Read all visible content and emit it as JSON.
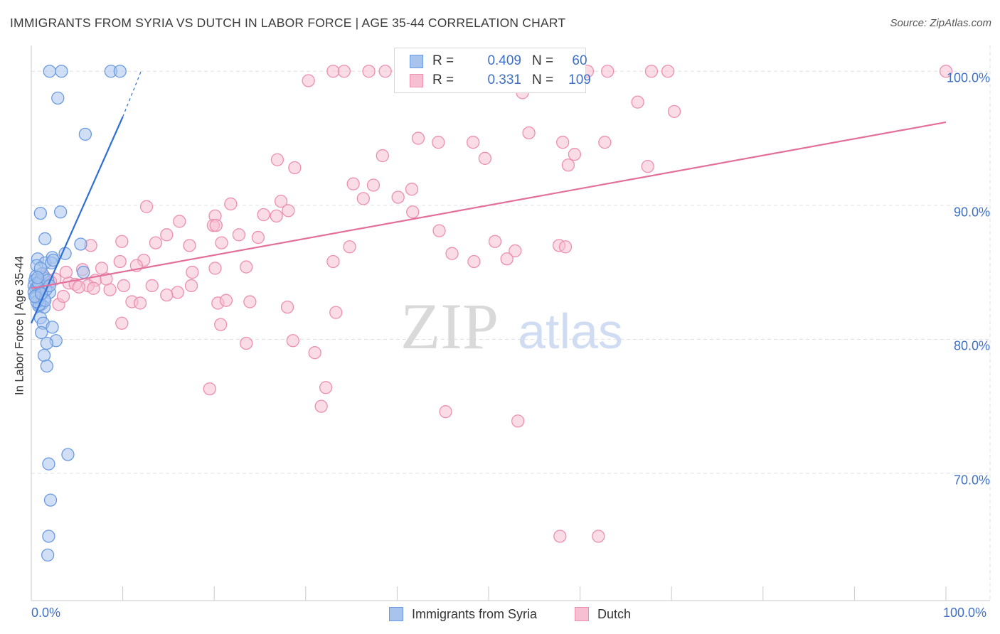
{
  "title": "IMMIGRANTS FROM SYRIA VS DUTCH IN LABOR FORCE | AGE 35-44 CORRELATION CHART",
  "source": "Source: ZipAtlas.com",
  "watermark": {
    "zip": "ZIP",
    "atlas": "atlas"
  },
  "colors": {
    "blue_fill": "#a9c4ec",
    "blue_stroke": "#6b9be0",
    "blue_line": "#2e6fd1",
    "pink_fill": "#f6bfd2",
    "pink_stroke": "#ec8fb0",
    "pink_line": "#e2709a",
    "accent_text": "#3d6fc6",
    "grid": "#e0e0e0"
  },
  "stats": {
    "syria": {
      "r_label": "R =",
      "r_value": "0.409",
      "n_label": "N =",
      "n_value": "60"
    },
    "dutch": {
      "r_label": "R =",
      "r_value": "0.331",
      "n_label": "N =",
      "n_value": "109"
    }
  },
  "legend": {
    "syria": "Immigrants from Syria",
    "dutch": "Dutch"
  },
  "chart_data": {
    "type": "scatter",
    "title": "IMMIGRANTS FROM SYRIA VS DUTCH IN LABOR FORCE | AGE 35-44 CORRELATION CHART",
    "xlabel": "",
    "ylabel": "In Labor Force | Age 35-44",
    "xlim": [
      0,
      100
    ],
    "ylim": [
      60.5,
      101.5
    ],
    "x_tick_labels": {
      "left": "0.0%",
      "right": "100.0%"
    },
    "y_ticks": [
      {
        "value": 100,
        "label": "100.0%"
      },
      {
        "value": 90,
        "label": "90.0%"
      },
      {
        "value": 80,
        "label": "80.0%"
      },
      {
        "value": 70,
        "label": "70.0%"
      }
    ],
    "grid": true,
    "series": [
      {
        "name": "Immigrants from Syria",
        "color": "blue",
        "trend": {
          "x0": 0.0,
          "y0": 81.2,
          "x1": 10.0,
          "y1": 96.6,
          "dash_x1": 12.0,
          "dash_y1": 100.0
        },
        "points": [
          [
            2.0,
            100.0
          ],
          [
            3.3,
            100.0
          ],
          [
            8.7,
            100.0
          ],
          [
            9.7,
            100.0
          ],
          [
            2.9,
            98.0
          ],
          [
            5.9,
            95.3
          ],
          [
            1.0,
            89.4
          ],
          [
            3.2,
            89.5
          ],
          [
            1.5,
            87.5
          ],
          [
            5.4,
            87.1
          ],
          [
            3.7,
            86.4
          ],
          [
            2.3,
            86.1
          ],
          [
            0.7,
            86.0
          ],
          [
            1.5,
            85.7
          ],
          [
            2.2,
            85.7
          ],
          [
            0.6,
            85.5
          ],
          [
            0.5,
            84.7
          ],
          [
            1.3,
            84.6
          ],
          [
            0.4,
            84.4
          ],
          [
            0.8,
            84.3
          ],
          [
            0.3,
            84.0
          ],
          [
            0.9,
            84.1
          ],
          [
            0.5,
            83.8
          ],
          [
            0.7,
            83.9
          ],
          [
            0.3,
            83.5
          ],
          [
            1.2,
            83.6
          ],
          [
            2.0,
            83.5
          ],
          [
            0.6,
            83.3
          ],
          [
            1.4,
            83.0
          ],
          [
            1.1,
            82.6
          ],
          [
            0.8,
            82.5
          ],
          [
            1.4,
            82.4
          ],
          [
            1.0,
            81.6
          ],
          [
            1.3,
            81.2
          ],
          [
            2.3,
            80.9
          ],
          [
            1.1,
            80.5
          ],
          [
            2.7,
            79.9
          ],
          [
            1.7,
            79.7
          ],
          [
            1.4,
            78.8
          ],
          [
            1.7,
            78.0
          ],
          [
            4.0,
            71.4
          ],
          [
            1.9,
            70.7
          ],
          [
            2.1,
            68.0
          ],
          [
            1.9,
            65.3
          ],
          [
            1.8,
            63.9
          ],
          [
            5.7,
            85.0
          ],
          [
            0.8,
            84.2
          ],
          [
            1.6,
            83.7
          ],
          [
            0.9,
            82.6
          ],
          [
            1.2,
            84.9
          ],
          [
            2.4,
            85.9
          ],
          [
            0.5,
            83.1
          ],
          [
            1.8,
            84.4
          ],
          [
            0.6,
            82.8
          ],
          [
            1.0,
            85.3
          ],
          [
            2.0,
            84.0
          ],
          [
            0.4,
            83.2
          ],
          [
            1.5,
            82.9
          ],
          [
            0.7,
            84.6
          ],
          [
            1.1,
            83.4
          ]
        ]
      },
      {
        "name": "Dutch",
        "color": "pink",
        "trend": {
          "x0": 0.0,
          "y0": 83.8,
          "x1": 100.0,
          "y1": 96.2
        },
        "points": [
          [
            33.0,
            100.0
          ],
          [
            34.2,
            100.0
          ],
          [
            36.9,
            100.0
          ],
          [
            38.7,
            100.0
          ],
          [
            43.5,
            100.0
          ],
          [
            60.8,
            100.0
          ],
          [
            63.0,
            100.0
          ],
          [
            67.8,
            100.0
          ],
          [
            69.6,
            100.0
          ],
          [
            100.0,
            100.0
          ],
          [
            30.3,
            99.3
          ],
          [
            46.1,
            99.3
          ],
          [
            52.4,
            99.6
          ],
          [
            53.7,
            98.4
          ],
          [
            66.3,
            97.7
          ],
          [
            70.3,
            97.0
          ],
          [
            42.3,
            95.0
          ],
          [
            48.3,
            94.7
          ],
          [
            44.5,
            94.7
          ],
          [
            54.4,
            95.4
          ],
          [
            58.1,
            94.7
          ],
          [
            62.7,
            94.7
          ],
          [
            38.4,
            93.7
          ],
          [
            49.6,
            93.5
          ],
          [
            59.4,
            93.8
          ],
          [
            26.9,
            93.4
          ],
          [
            28.8,
            92.8
          ],
          [
            58.7,
            93.0
          ],
          [
            67.4,
            92.9
          ],
          [
            35.2,
            91.6
          ],
          [
            37.4,
            91.5
          ],
          [
            41.6,
            91.2
          ],
          [
            40.1,
            90.6
          ],
          [
            27.3,
            90.3
          ],
          [
            36.3,
            90.5
          ],
          [
            28.1,
            89.6
          ],
          [
            41.7,
            89.5
          ],
          [
            12.6,
            89.9
          ],
          [
            21.8,
            90.1
          ],
          [
            20.1,
            89.2
          ],
          [
            25.4,
            89.3
          ],
          [
            26.8,
            89.2
          ],
          [
            16.2,
            88.8
          ],
          [
            19.9,
            88.5
          ],
          [
            20.2,
            88.5
          ],
          [
            14.8,
            87.8
          ],
          [
            22.7,
            87.8
          ],
          [
            24.8,
            87.6
          ],
          [
            44.6,
            88.1
          ],
          [
            9.9,
            87.3
          ],
          [
            13.6,
            87.2
          ],
          [
            17.3,
            87.0
          ],
          [
            20.8,
            87.2
          ],
          [
            34.8,
            86.9
          ],
          [
            50.7,
            87.3
          ],
          [
            6.5,
            87.0
          ],
          [
            52.9,
            86.6
          ],
          [
            57.7,
            87.0
          ],
          [
            58.4,
            86.9
          ],
          [
            46.0,
            86.4
          ],
          [
            52.0,
            86.0
          ],
          [
            48.4,
            85.8
          ],
          [
            33.0,
            85.8
          ],
          [
            23.5,
            85.4
          ],
          [
            12.3,
            85.9
          ],
          [
            7.7,
            85.3
          ],
          [
            5.6,
            85.2
          ],
          [
            9.7,
            85.8
          ],
          [
            11.5,
            85.5
          ],
          [
            20.1,
            85.3
          ],
          [
            17.6,
            85.0
          ],
          [
            4.1,
            84.2
          ],
          [
            2.6,
            84.5
          ],
          [
            4.8,
            84.1
          ],
          [
            7.0,
            84.4
          ],
          [
            10.1,
            84.0
          ],
          [
            13.2,
            84.0
          ],
          [
            17.5,
            84.0
          ],
          [
            8.6,
            83.7
          ],
          [
            6.2,
            84.0
          ],
          [
            16.0,
            83.5
          ],
          [
            14.8,
            83.3
          ],
          [
            20.4,
            82.7
          ],
          [
            21.3,
            82.9
          ],
          [
            11.0,
            82.8
          ],
          [
            11.9,
            82.7
          ],
          [
            23.9,
            82.8
          ],
          [
            28.0,
            82.4
          ],
          [
            33.3,
            82.0
          ],
          [
            3.0,
            82.6
          ],
          [
            9.9,
            81.2
          ],
          [
            20.7,
            81.1
          ],
          [
            23.5,
            79.7
          ],
          [
            28.6,
            79.9
          ],
          [
            31.0,
            79.0
          ],
          [
            32.2,
            76.4
          ],
          [
            19.5,
            76.3
          ],
          [
            45.3,
            74.6
          ],
          [
            53.2,
            73.9
          ],
          [
            31.7,
            75.0
          ],
          [
            57.8,
            65.3
          ],
          [
            62.0,
            65.3
          ],
          [
            2.1,
            84.3
          ],
          [
            5.2,
            83.9
          ],
          [
            3.5,
            83.2
          ],
          [
            1.4,
            84.7
          ],
          [
            3.8,
            85.0
          ],
          [
            8.2,
            84.5
          ],
          [
            6.8,
            83.8
          ]
        ]
      }
    ]
  }
}
